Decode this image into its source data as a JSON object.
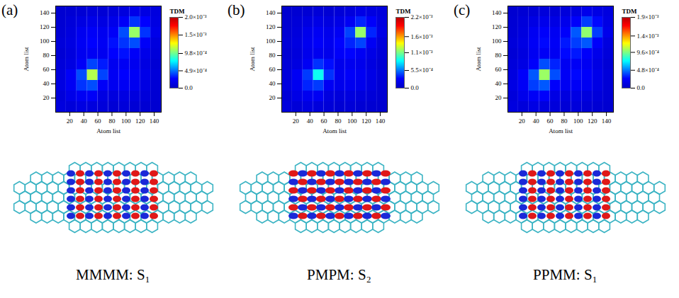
{
  "chart_data": [
    {
      "type": "heatmap",
      "panel": "(a)",
      "caption": "MMMM: S₁",
      "xlabel": "Atom list",
      "ylabel": "Atom list",
      "xlim": [
        0,
        150
      ],
      "ylim": [
        0,
        150
      ],
      "xticks": [
        20,
        40,
        60,
        80,
        100,
        120,
        140
      ],
      "yticks": [
        20,
        40,
        60,
        80,
        100,
        120,
        140
      ],
      "bins": [
        0,
        15,
        30,
        45,
        60,
        75,
        90,
        105,
        120,
        135,
        150
      ],
      "cells": [
        [
          0.0001,
          8e-05,
          0.00012,
          0.0001,
          8e-05,
          6e-05,
          8e-05,
          6e-05,
          5e-05,
          4e-05
        ],
        [
          8e-05,
          0.00015,
          0.0002,
          0.00022,
          0.00012,
          0.0001,
          0.00012,
          0.0001,
          8e-05,
          5e-05
        ],
        [
          0.00012,
          0.0002,
          0.00035,
          0.0004,
          0.00022,
          0.00018,
          0.0002,
          0.00018,
          0.00012,
          6e-05
        ],
        [
          0.0001,
          0.00022,
          0.0004,
          0.0011,
          0.00038,
          0.0002,
          0.00025,
          0.00022,
          0.00015,
          8e-05
        ],
        [
          8e-05,
          0.00012,
          0.00022,
          0.00038,
          0.0003,
          0.00018,
          0.0002,
          0.00018,
          0.00012,
          6e-05
        ],
        [
          6e-05,
          0.0001,
          0.00018,
          0.0002,
          0.00018,
          0.00025,
          0.00028,
          0.00022,
          0.00015,
          8e-05
        ],
        [
          8e-05,
          0.00012,
          0.0002,
          0.00025,
          0.0002,
          0.00028,
          0.00035,
          0.0004,
          0.00022,
          0.0001
        ],
        [
          6e-05,
          0.0001,
          0.00018,
          0.00022,
          0.00018,
          0.00022,
          0.0004,
          0.00105,
          0.00035,
          0.00015
        ],
        [
          5e-05,
          8e-05,
          0.00012,
          0.00015,
          0.00012,
          0.00015,
          0.00022,
          0.00035,
          0.00025,
          0.00012
        ],
        [
          4e-05,
          5e-05,
          6e-05,
          8e-05,
          6e-05,
          8e-05,
          0.0001,
          0.00015,
          0.00012,
          0.0001
        ]
      ],
      "colorbar": {
        "label": "TDM",
        "range": [
          0,
          0.002
        ],
        "ticks": [
          {
            "value": 0,
            "label": "0.0"
          },
          {
            "value": 0.00049,
            "label": "4.9×10⁻⁴"
          },
          {
            "value": 0.00098,
            "label": "9.8×10⁻⁴"
          },
          {
            "value": 0.0015,
            "label": "1.5×10⁻³"
          },
          {
            "value": 0.002,
            "label": "2.0×10⁻³"
          }
        ]
      }
    },
    {
      "type": "heatmap",
      "panel": "(b)",
      "caption": "PMPM: S₂",
      "xlabel": "Atom list",
      "ylabel": "Atom list",
      "xlim": [
        0,
        150
      ],
      "ylim": [
        0,
        150
      ],
      "xticks": [
        20,
        40,
        60,
        80,
        100,
        120,
        140
      ],
      "yticks": [
        20,
        40,
        60,
        80,
        100,
        120,
        140
      ],
      "bins": [
        0,
        15,
        30,
        45,
        60,
        75,
        90,
        105,
        120,
        135,
        150
      ],
      "cells": [
        [
          0.0001,
          8e-05,
          0.00012,
          0.0001,
          8e-05,
          6e-05,
          8e-05,
          6e-05,
          5e-05,
          4e-05
        ],
        [
          8e-05,
          0.00015,
          0.0002,
          0.00022,
          0.00012,
          0.0001,
          0.00012,
          0.0001,
          8e-05,
          5e-05
        ],
        [
          0.00012,
          0.0002,
          0.00035,
          0.0004,
          0.00022,
          0.00018,
          0.0002,
          0.00018,
          0.00012,
          6e-05
        ],
        [
          0.0001,
          0.00022,
          0.0004,
          0.00085,
          0.00038,
          0.0002,
          0.00025,
          0.00022,
          0.00015,
          8e-05
        ],
        [
          8e-05,
          0.00012,
          0.00022,
          0.00038,
          0.0003,
          0.00018,
          0.0002,
          0.00018,
          0.00012,
          6e-05
        ],
        [
          6e-05,
          0.0001,
          0.00018,
          0.0002,
          0.00018,
          0.00025,
          0.00028,
          0.00022,
          0.00015,
          8e-05
        ],
        [
          8e-05,
          0.00012,
          0.0002,
          0.00025,
          0.0002,
          0.00028,
          0.00035,
          0.00042,
          0.00022,
          0.0001
        ],
        [
          6e-05,
          0.0001,
          0.00018,
          0.00022,
          0.00018,
          0.00022,
          0.00042,
          0.00115,
          0.00035,
          0.00015
        ],
        [
          5e-05,
          8e-05,
          0.00012,
          0.00015,
          0.00012,
          0.00015,
          0.00022,
          0.00035,
          0.00025,
          0.00012
        ],
        [
          4e-05,
          5e-05,
          6e-05,
          8e-05,
          6e-05,
          8e-05,
          0.0001,
          0.00015,
          0.00012,
          0.0001
        ]
      ],
      "colorbar": {
        "label": "TDM",
        "range": [
          0,
          0.0022
        ],
        "ticks": [
          {
            "value": 0,
            "label": "0.0"
          },
          {
            "value": 0.00055,
            "label": "5.5×10⁻⁴"
          },
          {
            "value": 0.0011,
            "label": "1.1×10⁻³"
          },
          {
            "value": 0.0016,
            "label": "1.6×10⁻³"
          },
          {
            "value": 0.0022,
            "label": "2.2×10⁻³"
          }
        ]
      }
    },
    {
      "type": "heatmap",
      "panel": "(c)",
      "caption": "PPMM: S₁",
      "xlabel": "Atom list",
      "ylabel": "Atom list",
      "xlim": [
        0,
        150
      ],
      "ylim": [
        0,
        150
      ],
      "xticks": [
        20,
        40,
        60,
        80,
        100,
        120,
        140
      ],
      "yticks": [
        20,
        40,
        60,
        80,
        100,
        120,
        140
      ],
      "bins": [
        0,
        15,
        30,
        45,
        60,
        75,
        90,
        105,
        120,
        135,
        150
      ],
      "cells": [
        [
          0.0001,
          8e-05,
          0.00012,
          0.0001,
          8e-05,
          6e-05,
          8e-05,
          6e-05,
          5e-05,
          4e-05
        ],
        [
          8e-05,
          0.00015,
          0.0002,
          0.00022,
          0.00012,
          0.0001,
          0.00012,
          0.0001,
          8e-05,
          5e-05
        ],
        [
          0.00012,
          0.0002,
          0.00035,
          0.0004,
          0.00022,
          0.00018,
          0.0002,
          0.00018,
          0.00012,
          6e-05
        ],
        [
          0.0001,
          0.00022,
          0.0004,
          0.001,
          0.00038,
          0.0002,
          0.00025,
          0.00022,
          0.00015,
          8e-05
        ],
        [
          8e-05,
          0.00012,
          0.00022,
          0.00038,
          0.0003,
          0.00018,
          0.0002,
          0.00018,
          0.00012,
          6e-05
        ],
        [
          6e-05,
          0.0001,
          0.00018,
          0.0002,
          0.00018,
          0.00025,
          0.00028,
          0.00022,
          0.00015,
          8e-05
        ],
        [
          8e-05,
          0.00012,
          0.0002,
          0.00025,
          0.0002,
          0.00028,
          0.00035,
          0.0004,
          0.00022,
          0.0001
        ],
        [
          6e-05,
          0.0001,
          0.00018,
          0.00022,
          0.00018,
          0.00022,
          0.0004,
          0.00098,
          0.00035,
          0.00015
        ],
        [
          5e-05,
          8e-05,
          0.00012,
          0.00015,
          0.00012,
          0.00015,
          0.00022,
          0.00035,
          0.00025,
          0.00012
        ],
        [
          4e-05,
          5e-05,
          6e-05,
          8e-05,
          6e-05,
          8e-05,
          0.0001,
          0.00015,
          0.00012,
          0.0001
        ]
      ],
      "colorbar": {
        "label": "TDM",
        "range": [
          0,
          0.0019
        ],
        "ticks": [
          {
            "value": 0,
            "label": "0.0"
          },
          {
            "value": 0.00048,
            "label": "4.8×10⁻⁴"
          },
          {
            "value": 0.00096,
            "label": "9.6×10⁻⁴"
          },
          {
            "value": 0.0014,
            "label": "1.4×10⁻³"
          },
          {
            "value": 0.0019,
            "label": "1.9×10⁻³"
          }
        ]
      }
    }
  ]
}
